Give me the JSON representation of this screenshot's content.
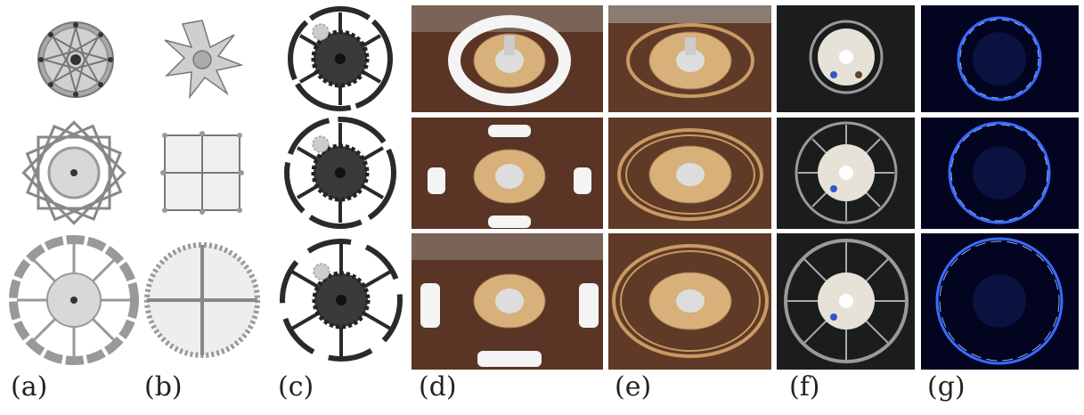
{
  "figure": {
    "captions": [
      {
        "id": "a",
        "text": "(a)"
      },
      {
        "id": "b",
        "text": "(b)"
      },
      {
        "id": "c",
        "text": "(c)"
      },
      {
        "id": "d",
        "text": "(d)"
      },
      {
        "id": "e",
        "text": "(e)"
      },
      {
        "id": "f",
        "text": "(f)"
      },
      {
        "id": "g",
        "text": "(g)"
      }
    ],
    "columns": [
      {
        "id": "a",
        "content": "rotational-sliding-mechanism-render",
        "background": "#ffffff"
      },
      {
        "id": "b",
        "content": "hoberman-sphere-render",
        "background": "#ffffff"
      },
      {
        "id": "c",
        "content": "gear-ring-mechanism-render",
        "background": "#ffffff"
      },
      {
        "id": "d",
        "content": "prototype-photo-white-ring",
        "background": "#5a3424"
      },
      {
        "id": "e",
        "content": "prototype-photo-wood-ring",
        "background": "#5f3a27"
      },
      {
        "id": "f",
        "content": "prototype-photo-transparent-ring",
        "background": "#1b1c1c"
      },
      {
        "id": "g",
        "content": "led-light-ring-photo",
        "background": "#020420"
      }
    ],
    "colors": {
      "render_gray": "#9a9a9a",
      "render_dark": "#2a2a2a",
      "wood": "#d8b07a",
      "table": "#5a3424",
      "led_blue": "#3a6bff"
    }
  }
}
